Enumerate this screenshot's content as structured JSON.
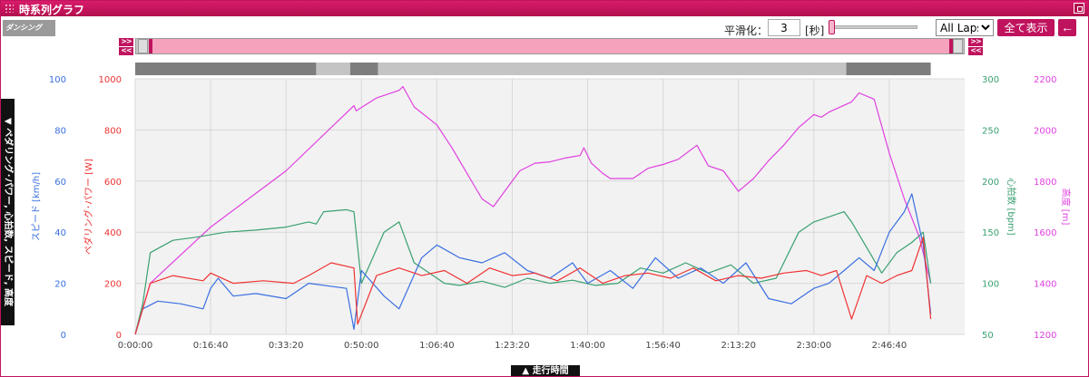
{
  "window": {
    "title": "時系列グラフ"
  },
  "logo": {
    "text": "ダンシング"
  },
  "controls": {
    "smoothing_label": "平滑化：",
    "smoothing_value": "3",
    "smoothing_unit": "[秒]",
    "laps_selected": "All Laps",
    "show_all_label": "全て表示",
    "back_icon": "←"
  },
  "nav": {
    "next": ">>",
    "prev": "<<"
  },
  "side_tab_label": "▼ ペダリング･パワー, 心拍数, スピード, 高度",
  "bottom_tab_label": "▲ 走行時間",
  "colors": {
    "speed": "#3a6fe0",
    "power": "#f03232",
    "heart": "#3aa070",
    "altitude": "#e040e0",
    "accent": "#c0135e"
  },
  "chart_data": {
    "type": "line",
    "x_axis": {
      "label": "走行時間",
      "unit": "seconds",
      "range": [
        0,
        11000
      ],
      "ticks": [
        0,
        1000,
        2000,
        3000,
        4000,
        5000,
        6000,
        7000,
        8000,
        9000,
        10000
      ],
      "tick_labels": [
        "0:00:00",
        "0:16:40",
        "0:33:20",
        "0:50:00",
        "1:06:40",
        "1:23:20",
        "1:40:00",
        "1:56:40",
        "2:13:20",
        "2:30:00",
        "2:46:40"
      ]
    },
    "axes": {
      "speed": {
        "label": "スピード [km/h]",
        "range": [
          0,
          100
        ],
        "ticks": [
          0,
          20,
          40,
          60,
          80,
          100
        ]
      },
      "power": {
        "label": "ペダリング･パワー [W]",
        "range": [
          0,
          1000
        ],
        "ticks": [
          0,
          200,
          400,
          600,
          800,
          1000
        ]
      },
      "heart": {
        "label": "心拍数 [bpm]",
        "range": [
          50,
          300
        ],
        "ticks": [
          50,
          100,
          150,
          200,
          250,
          300
        ]
      },
      "altitude": {
        "label": "高度 [m]",
        "range": [
          1200,
          2200
        ],
        "ticks": [
          1200,
          1400,
          1600,
          1800,
          2000,
          2200
        ]
      }
    },
    "lap_segments": [
      {
        "start": 0,
        "end": 2400,
        "shade": "dark"
      },
      {
        "start": 2400,
        "end": 2850,
        "shade": "light"
      },
      {
        "start": 2850,
        "end": 3220,
        "shade": "dark"
      },
      {
        "start": 3220,
        "end": 9430,
        "shade": "light"
      },
      {
        "start": 9430,
        "end": 10550,
        "shade": "dark"
      }
    ],
    "series": [
      {
        "name": "高度",
        "axis": "altitude",
        "x": [
          0,
          200,
          1000,
          2000,
          2900,
          2930,
          3200,
          3500,
          3550,
          3700,
          4000,
          4200,
          4600,
          4750,
          4900,
          5100,
          5300,
          5500,
          5700,
          5900,
          5950,
          6050,
          6200,
          6300,
          6600,
          6800,
          7000,
          7200,
          7450,
          7600,
          7800,
          8000,
          8200,
          8400,
          8600,
          8800,
          9000,
          9100,
          9200,
          9500,
          9600,
          9800,
          10000,
          10200,
          10400,
          10550
        ],
        "y": [
          1200,
          1400,
          1620,
          1840,
          2095,
          2075,
          2125,
          2155,
          2170,
          2090,
          2020,
          1930,
          1730,
          1700,
          1760,
          1840,
          1870,
          1875,
          1890,
          1900,
          1930,
          1870,
          1830,
          1810,
          1810,
          1850,
          1865,
          1885,
          1940,
          1860,
          1840,
          1760,
          1810,
          1880,
          1940,
          2010,
          2060,
          2050,
          2070,
          2110,
          2145,
          2120,
          1910,
          1730,
          1580,
          1400
        ]
      },
      {
        "name": "心拍数",
        "axis": "heart",
        "x": [
          0,
          100,
          200,
          500,
          800,
          1200,
          1600,
          2000,
          2300,
          2400,
          2500,
          2800,
          2900,
          3000,
          3300,
          3500,
          3700,
          3900,
          4100,
          4300,
          4600,
          4900,
          5200,
          5500,
          5800,
          6100,
          6400,
          6700,
          7000,
          7300,
          7600,
          7900,
          8200,
          8500,
          8800,
          9000,
          9200,
          9400,
          9500,
          9700,
          9900,
          10100,
          10300,
          10450,
          10550
        ],
        "y": [
          50,
          80,
          130,
          142,
          145,
          150,
          152,
          155,
          160,
          158,
          170,
          172,
          170,
          100,
          150,
          160,
          120,
          110,
          100,
          98,
          102,
          96,
          105,
          100,
          103,
          98,
          100,
          115,
          110,
          120,
          110,
          118,
          100,
          105,
          150,
          160,
          165,
          170,
          160,
          135,
          110,
          130,
          140,
          150,
          100
        ]
      },
      {
        "name": "スピード",
        "axis": "speed",
        "x": [
          0,
          100,
          300,
          600,
          900,
          1000,
          1100,
          1300,
          1600,
          2000,
          2300,
          2800,
          2900,
          3000,
          3300,
          3500,
          3800,
          4000,
          4300,
          4600,
          4900,
          5200,
          5500,
          5800,
          6000,
          6300,
          6600,
          6900,
          7200,
          7500,
          7800,
          8100,
          8400,
          8700,
          9000,
          9200,
          9400,
          9600,
          9800,
          10000,
          10200,
          10300,
          10450,
          10550
        ],
        "y": [
          0,
          10,
          13,
          12,
          10,
          18,
          22,
          15,
          16,
          14,
          20,
          18,
          2,
          25,
          15,
          10,
          30,
          35,
          30,
          28,
          32,
          25,
          22,
          28,
          20,
          25,
          18,
          30,
          22,
          26,
          20,
          28,
          14,
          12,
          18,
          20,
          25,
          30,
          25,
          40,
          48,
          55,
          35,
          8
        ]
      },
      {
        "name": "ペダリング･パワー",
        "axis": "power",
        "x": [
          0,
          200,
          500,
          900,
          1000,
          1300,
          1700,
          2100,
          2300,
          2600,
          2900,
          2950,
          3200,
          3500,
          3800,
          4100,
          4400,
          4700,
          5000,
          5300,
          5600,
          5900,
          6200,
          6500,
          6800,
          7100,
          7400,
          7700,
          8000,
          8300,
          8600,
          8900,
          9100,
          9300,
          9500,
          9700,
          9900,
          10100,
          10300,
          10450,
          10550
        ],
        "y": [
          0,
          200,
          230,
          210,
          240,
          200,
          210,
          200,
          230,
          280,
          260,
          40,
          230,
          260,
          230,
          250,
          200,
          260,
          230,
          240,
          210,
          260,
          200,
          230,
          240,
          220,
          260,
          210,
          230,
          220,
          240,
          250,
          230,
          250,
          60,
          230,
          200,
          230,
          250,
          380,
          60
        ]
      }
    ]
  }
}
